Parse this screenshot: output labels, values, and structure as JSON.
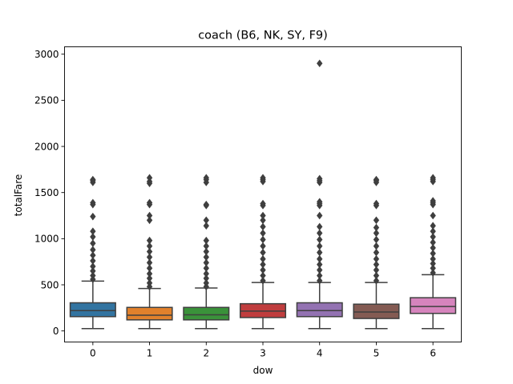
{
  "chart_data": {
    "type": "box",
    "title": "coach (B6, NK, SY, F9)",
    "xlabel": "dow",
    "ylabel": "totalFare",
    "ylim": [
      -120,
      3080
    ],
    "yticks": [
      0,
      500,
      1000,
      1500,
      2000,
      2500,
      3000
    ],
    "grid": false,
    "categories": [
      "0",
      "1",
      "2",
      "3",
      "4",
      "5",
      "6"
    ],
    "colors": [
      "#3274a1",
      "#e1812c",
      "#3a923a",
      "#c03d3e",
      "#9372b2",
      "#845b53",
      "#d684bd"
    ],
    "boxes": [
      {
        "category": "0",
        "whisker_low": 25,
        "q1": 155,
        "median": 220,
        "q3": 305,
        "whisker_high": 540,
        "outliers": [
          560,
          600,
          650,
          700,
          760,
          820,
          880,
          950,
          1020,
          1080,
          1240,
          1370,
          1390,
          1610,
          1630,
          1640
        ]
      },
      {
        "category": "1",
        "whisker_low": 25,
        "q1": 120,
        "median": 170,
        "q3": 255,
        "whisker_high": 460,
        "outliers": [
          480,
          520,
          570,
          620,
          680,
          740,
          800,
          860,
          920,
          980,
          1200,
          1250,
          1370,
          1390,
          1600,
          1620,
          1660
        ]
      },
      {
        "category": "2",
        "whisker_low": 25,
        "q1": 120,
        "median": 175,
        "q3": 255,
        "whisker_high": 465,
        "outliers": [
          480,
          520,
          570,
          620,
          680,
          740,
          800,
          860,
          920,
          980,
          1140,
          1200,
          1360,
          1370,
          1610,
          1640,
          1660
        ]
      },
      {
        "category": "3",
        "whisker_low": 25,
        "q1": 145,
        "median": 215,
        "q3": 295,
        "whisker_high": 525,
        "outliers": [
          545,
          600,
          660,
          720,
          780,
          850,
          920,
          990,
          1060,
          1130,
          1200,
          1250,
          1360,
          1380,
          1620,
          1640,
          1660
        ]
      },
      {
        "category": "4",
        "whisker_low": 25,
        "q1": 155,
        "median": 220,
        "q3": 305,
        "whisker_high": 525,
        "outliers": [
          545,
          600,
          660,
          720,
          780,
          850,
          920,
          990,
          1060,
          1130,
          1250,
          1360,
          1380,
          1400,
          1610,
          1630,
          1650,
          2900
        ]
      },
      {
        "category": "5",
        "whisker_low": 25,
        "q1": 135,
        "median": 205,
        "q3": 290,
        "whisker_high": 525,
        "outliers": [
          545,
          600,
          660,
          720,
          780,
          850,
          920,
          990,
          1060,
          1120,
          1200,
          1360,
          1380,
          1610,
          1630,
          1640
        ]
      },
      {
        "category": "6",
        "whisker_low": 25,
        "q1": 190,
        "median": 265,
        "q3": 360,
        "whisker_high": 610,
        "outliers": [
          630,
          680,
          730,
          780,
          840,
          900,
          960,
          1020,
          1080,
          1140,
          1250,
          1370,
          1390,
          1410,
          1620,
          1640,
          1660
        ]
      }
    ]
  }
}
